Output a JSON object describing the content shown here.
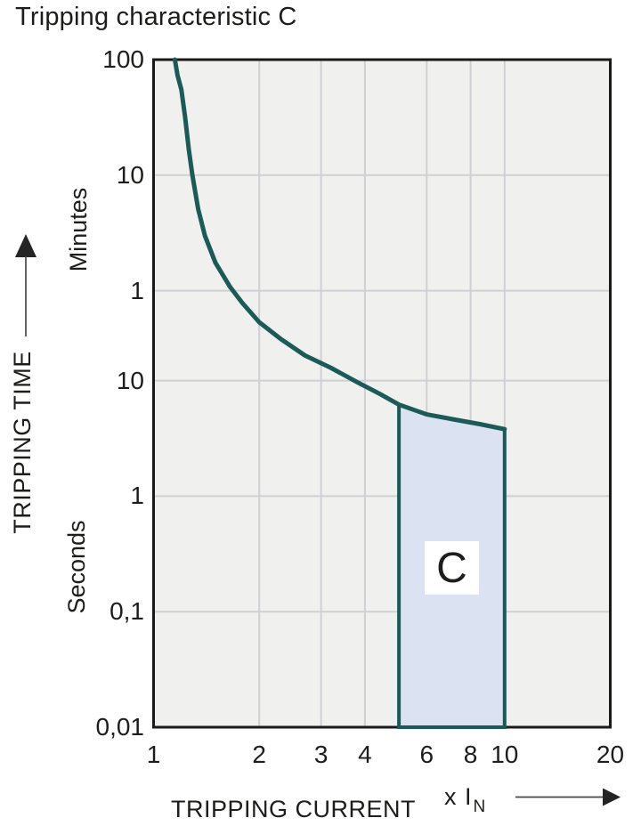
{
  "title": "Tripping characteristic C",
  "colors": {
    "curve": "#1B5A57",
    "region_fill": "#DBE2F1",
    "plot_background": "#F0F0EF",
    "gridline": "#CFCFD4",
    "border": "#1A1A1A",
    "text": "#1D1D1B",
    "label_box": "#FFFFFF",
    "arrow": "#2A2A2A"
  },
  "y_axis": {
    "title": "TRIPPING TIME",
    "upper_unit": "Minutes",
    "lower_unit": "Seconds",
    "ticks": [
      {
        "label": "100",
        "seconds": 6000
      },
      {
        "label": "10",
        "seconds": 600
      },
      {
        "label": "1",
        "seconds": 60
      },
      {
        "label": "10",
        "seconds": 10
      },
      {
        "label": "1",
        "seconds": 1
      },
      {
        "label": "0,1",
        "seconds": 0.1
      },
      {
        "label": "0,01",
        "seconds": 0.01
      }
    ]
  },
  "x_axis": {
    "title": "TRIPPING CURRENT",
    "unit_text": "x I",
    "unit_subscript": "N",
    "ticks": [
      {
        "label": "1",
        "value": 1
      },
      {
        "label": "2",
        "value": 2
      },
      {
        "label": "3",
        "value": 3
      },
      {
        "label": "4",
        "value": 4
      },
      {
        "label": "6",
        "value": 6
      },
      {
        "label": "8",
        "value": 8
      },
      {
        "label": "10",
        "value": 10
      },
      {
        "label": "20",
        "value": 20
      }
    ]
  },
  "chart_data": {
    "type": "line",
    "title": "Tripping characteristic C",
    "x_scale": "log",
    "y_scale": "log",
    "xlabel": "TRIPPING CURRENT (x IN, multiple of rated current)",
    "ylabel": "TRIPPING TIME (minutes above 10 s scale break, seconds below)",
    "x_range": [
      1,
      20
    ],
    "y_range_seconds": [
      0.01,
      6000
    ],
    "grid": true,
    "legend": "none",
    "gridlines_x": [
      2,
      3,
      4,
      6,
      8,
      10
    ],
    "gridlines_y_seconds": [
      600,
      60,
      10,
      1,
      0.1
    ],
    "series": [
      {
        "name": "C-characteristic thermal trip curve",
        "points_x_multiple_vs_seconds": [
          [
            1.15,
            6000
          ],
          [
            1.17,
            4400
          ],
          [
            1.2,
            3300
          ],
          [
            1.23,
            1900
          ],
          [
            1.26,
            1000
          ],
          [
            1.29,
            600
          ],
          [
            1.34,
            305
          ],
          [
            1.4,
            180
          ],
          [
            1.5,
            105
          ],
          [
            1.65,
            65
          ],
          [
            1.79,
            47
          ],
          [
            2.0,
            32
          ],
          [
            2.3,
            23
          ],
          [
            2.7,
            16.5
          ],
          [
            3.2,
            12.9
          ],
          [
            3.8,
            9.7
          ],
          [
            4.4,
            7.7
          ],
          [
            5.0,
            6.2
          ],
          [
            6.0,
            5.1
          ],
          [
            7.2,
            4.6
          ],
          [
            8.5,
            4.2
          ],
          [
            10.0,
            3.8
          ]
        ]
      }
    ],
    "region": {
      "label": "C",
      "x_min_multiple": 5,
      "x_max_multiple": 10,
      "t_min_seconds": 0.01,
      "t_at_x_min_seconds": 6.2,
      "t_at_x_max_seconds": 3.8,
      "top_follows_curve": true
    }
  }
}
